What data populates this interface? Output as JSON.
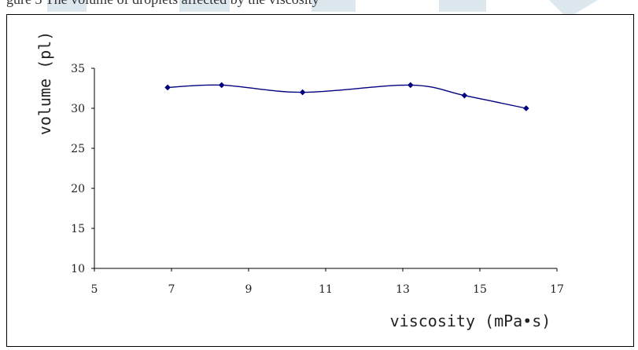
{
  "header": {
    "text": "gure 3 The volume of droplets affected by the viscosity"
  },
  "chart_data": {
    "type": "line",
    "title": "",
    "xlabel": "viscosity (mPa•s)",
    "ylabel": "volume (pl)",
    "xlim": [
      5,
      17
    ],
    "ylim": [
      10,
      35
    ],
    "x_ticks": [
      "5",
      "7",
      "9",
      "11",
      "13",
      "15",
      "17"
    ],
    "y_ticks": [
      "10",
      "15",
      "20",
      "25",
      "30",
      "35"
    ],
    "grid": false,
    "legend": "none",
    "series": [
      {
        "x": [
          6.9,
          8.3,
          10.4,
          13.2,
          14.6,
          16.2
        ],
        "y": [
          32.6,
          32.9,
          32.0,
          32.9,
          31.6,
          30.0
        ]
      }
    ],
    "colors": {
      "line": "#000080",
      "marker": "#000080",
      "axis": "#000000",
      "watermark": "#dde8ee"
    }
  }
}
